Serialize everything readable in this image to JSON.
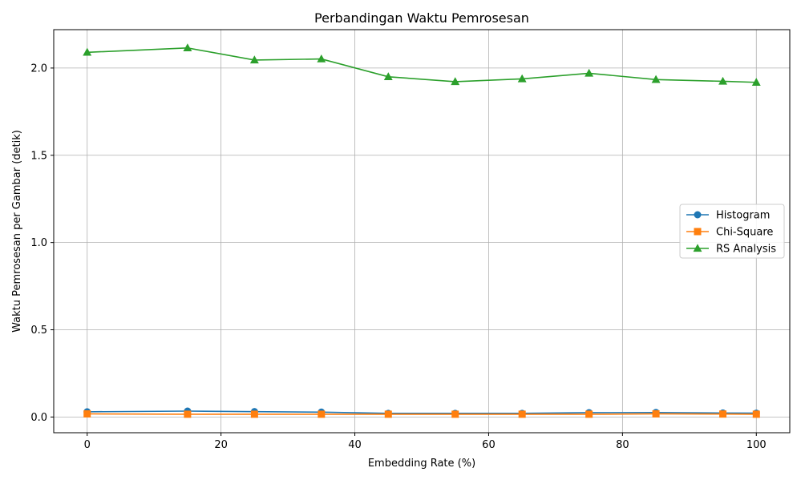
{
  "chart_data": {
    "type": "line",
    "title": "Perbandingan Waktu Pemrosesan",
    "xlabel": "Embedding Rate (%)",
    "ylabel": "Waktu Pemrosesan per Gambar (detik)",
    "xlim": [
      -5,
      105
    ],
    "ylim": [
      -0.09,
      2.22
    ],
    "x_ticks": [
      0,
      20,
      40,
      60,
      80,
      100
    ],
    "y_ticks": [
      0.0,
      0.5,
      1.0,
      1.5,
      2.0
    ],
    "x_tick_labels": [
      "0",
      "20",
      "40",
      "60",
      "80",
      "100"
    ],
    "y_tick_labels": [
      "0.0",
      "0.5",
      "1.0",
      "1.5",
      "2.0"
    ],
    "grid": true,
    "legend_position": "center-right",
    "x": [
      0,
      15,
      25,
      35,
      45,
      55,
      65,
      75,
      85,
      95,
      100
    ],
    "series": [
      {
        "name": "Histogram",
        "color": "#1f77b4",
        "marker": "circle",
        "values": [
          0.03,
          0.034,
          0.031,
          0.028,
          0.021,
          0.021,
          0.021,
          0.025,
          0.026,
          0.023,
          0.022
        ]
      },
      {
        "name": "Chi-Square",
        "color": "#ff7f0e",
        "marker": "square",
        "values": [
          0.018,
          0.016,
          0.016,
          0.016,
          0.016,
          0.016,
          0.016,
          0.016,
          0.018,
          0.017,
          0.016
        ]
      },
      {
        "name": "RS Analysis",
        "color": "#2ca02c",
        "marker": "triangle",
        "values": [
          2.09,
          2.115,
          2.046,
          2.052,
          1.95,
          1.922,
          1.938,
          1.97,
          1.934,
          1.924,
          1.918
        ]
      }
    ]
  }
}
